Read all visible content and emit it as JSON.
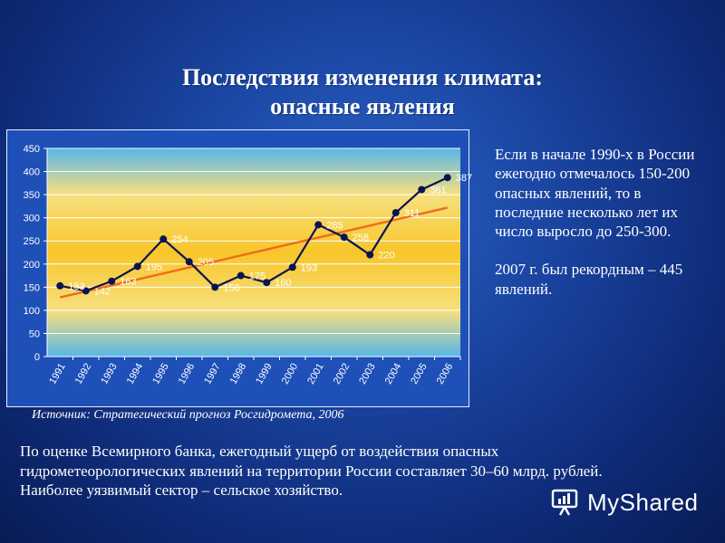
{
  "title": {
    "line1": "Последствия изменения климата:",
    "line2": "опасные явления"
  },
  "chart_data": {
    "type": "line",
    "categories": [
      "1991",
      "1992",
      "1993",
      "1994",
      "1995",
      "1996",
      "1997",
      "1998",
      "1999",
      "2000",
      "2001",
      "2002",
      "2003",
      "2004",
      "2005",
      "2006"
    ],
    "series": [
      {
        "values": [
          153,
          142,
          163,
          195,
          254,
          205,
          150,
          175,
          160,
          193,
          285,
          258,
          220,
          311,
          361,
          387
        ],
        "labels": [
          "153",
          "142",
          "163",
          "195",
          "254",
          "205",
          "150",
          "175",
          "160",
          "193",
          "285",
          "258",
          "220",
          "311",
          "361",
          "387"
        ],
        "color": "#0a1450"
      }
    ],
    "trendline": {
      "start": 128,
      "end": 322,
      "color": "#f06a1e"
    },
    "ylim": [
      0,
      450
    ],
    "yticks": [
      0,
      50,
      100,
      150,
      200,
      250,
      300,
      350,
      400,
      450
    ],
    "grid": true,
    "legend": "none"
  },
  "source": "Источник: Стратегический прогноз Росгидромета, 2006",
  "side_text": {
    "p1": "Если в начале 1990-х в России ежегодно отмечалось 150-200 опасных явлений, то в последние несколько лет их число выросло до 250-300.",
    "p2": "2007 г. был рекордным – 445 явлений."
  },
  "bottom_text": {
    "line1": "По оценке Всемирного банка, ежегодный ущерб от воздействия опасных",
    "line2": "гидрометеорологических явлений на территории России составляет 30–60 млрд. рублей.",
    "line3": "Наиболее уязвимый сектор – сельское хозяйство."
  },
  "logo": {
    "text": "MyShared",
    "icon": "myshared-logo-icon"
  }
}
